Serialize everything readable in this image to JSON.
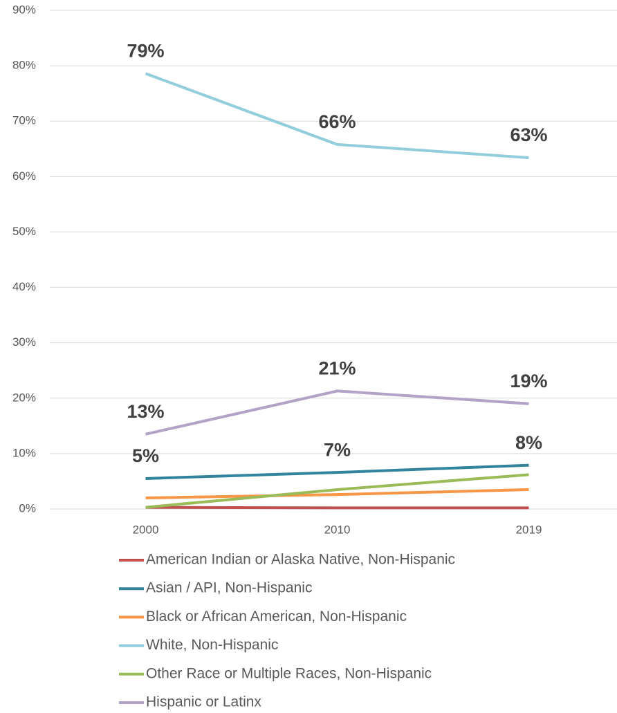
{
  "chart_data": {
    "type": "line",
    "categories": [
      "2000",
      "2010",
      "2019"
    ],
    "series": [
      {
        "name": "American Indian or Alaska Native, Non-Hispanic",
        "color": "#c0504d",
        "values": [
          0.3,
          0.2,
          0.2
        ]
      },
      {
        "name": "Asian / API, Non-Hispanic",
        "color": "#31849b",
        "values": [
          5.5,
          6.6,
          7.9
        ],
        "value_labels": [
          "5%",
          "7%",
          "8%"
        ]
      },
      {
        "name": "Black or African American, Non-Hispanic",
        "color": "#f79646",
        "values": [
          2.0,
          2.6,
          3.5
        ]
      },
      {
        "name": "White, Non-Hispanic",
        "color": "#92cddc",
        "values": [
          78.6,
          65.8,
          63.4
        ],
        "value_labels": [
          "79%",
          "66%",
          "63%"
        ]
      },
      {
        "name": "Other Race or Multiple Races, Non-Hispanic",
        "color": "#9bbb59",
        "values": [
          0.3,
          3.5,
          6.2
        ]
      },
      {
        "name": "Hispanic or Latinx",
        "color": "#b3a2c7",
        "values": [
          13.5,
          21.3,
          19.0
        ],
        "value_labels": [
          "13%",
          "21%",
          "19%"
        ]
      }
    ],
    "ylim": [
      0,
      90
    ],
    "yticks": [
      {
        "value": 0,
        "label": "0%"
      },
      {
        "value": 10,
        "label": "10%"
      },
      {
        "value": 20,
        "label": "20%"
      },
      {
        "value": 30,
        "label": "30%"
      },
      {
        "value": 40,
        "label": "40%"
      },
      {
        "value": 50,
        "label": "50%"
      },
      {
        "value": 60,
        "label": "60%"
      },
      {
        "value": 70,
        "label": "70%"
      },
      {
        "value": 80,
        "label": "80%"
      },
      {
        "value": 90,
        "label": "90%"
      }
    ],
    "grid": true,
    "legend": "bottom"
  }
}
